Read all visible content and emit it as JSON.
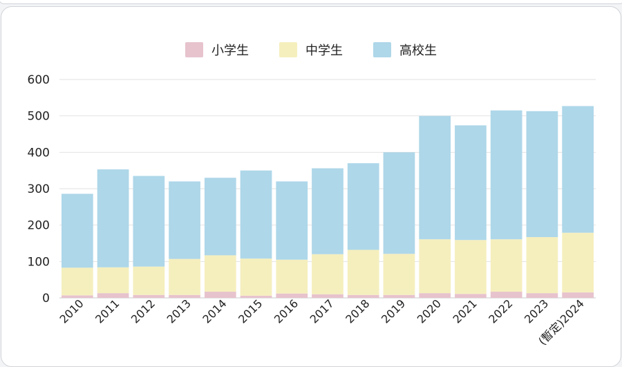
{
  "chart_data": {
    "type": "bar",
    "stacked": true,
    "categories": [
      "2010",
      "2011",
      "2012",
      "2013",
      "2014",
      "2015",
      "2016",
      "2017",
      "2018",
      "2019",
      "2020",
      "2021",
      "2022",
      "2023",
      "(暫定)2024"
    ],
    "series": [
      {
        "name": "小学生",
        "color": "#e7c3cd",
        "values": [
          7,
          13,
          8,
          8,
          17,
          6,
          12,
          10,
          8,
          8,
          13,
          11,
          17,
          13,
          15
        ]
      },
      {
        "name": "中学生",
        "color": "#f5efbe",
        "values": [
          76,
          71,
          78,
          99,
          100,
          102,
          93,
          110,
          124,
          113,
          148,
          148,
          144,
          154,
          164
        ]
      },
      {
        "name": "高校生",
        "color": "#aed7e9",
        "values": [
          203,
          269,
          249,
          213,
          213,
          242,
          215,
          236,
          238,
          279,
          339,
          315,
          354,
          346,
          348
        ]
      }
    ],
    "ylim": [
      0,
      600
    ],
    "yticks": [
      0,
      100,
      200,
      300,
      400,
      500,
      600
    ],
    "grid": true,
    "legend": "top-center",
    "title": "",
    "xlabel": "",
    "ylabel": ""
  }
}
